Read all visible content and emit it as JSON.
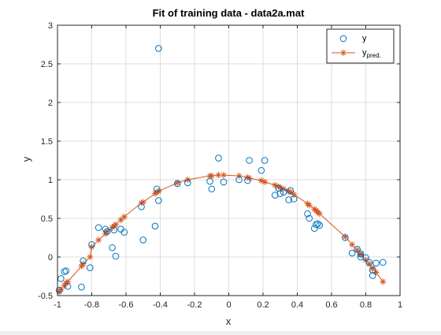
{
  "chart_data": {
    "type": "scatter",
    "title": "Fit of training data - data2a.mat",
    "xlabel": "x",
    "ylabel": "y",
    "xlim": [
      -1,
      1
    ],
    "ylim": [
      -0.5,
      3
    ],
    "xticks": [
      -1,
      -0.8,
      -0.6,
      -0.4,
      -0.2,
      0,
      0.2,
      0.4,
      0.6,
      0.8,
      1
    ],
    "xtick_labels": [
      "-1",
      "-0.8",
      "-0.6",
      "-0.4",
      "-0.2",
      "0",
      "0.2",
      "0.4",
      "0.6",
      "0.8",
      "1"
    ],
    "yticks": [
      -0.5,
      0,
      0.5,
      1,
      1.5,
      2,
      2.5,
      3
    ],
    "ytick_labels": [
      "-0.5",
      "0",
      "0.5",
      "1",
      "1.5",
      "2",
      "2.5",
      "3"
    ],
    "grid": true,
    "legend_position": "top-right",
    "series": [
      {
        "name": "y",
        "style": "circle-markers",
        "color": "#0072BD",
        "x": [
          -0.99,
          -0.98,
          -0.96,
          -0.95,
          -0.94,
          -0.86,
          -0.85,
          -0.81,
          -0.8,
          -0.76,
          -0.72,
          -0.71,
          -0.68,
          -0.67,
          -0.66,
          -0.63,
          -0.61,
          -0.51,
          -0.5,
          -0.43,
          -0.42,
          -0.41,
          -0.41,
          -0.3,
          -0.24,
          -0.11,
          -0.1,
          -0.06,
          -0.03,
          0.06,
          0.11,
          0.12,
          0.19,
          0.21,
          0.27,
          0.29,
          0.3,
          0.32,
          0.35,
          0.36,
          0.38,
          0.46,
          0.47,
          0.5,
          0.51,
          0.52,
          0.53,
          0.68,
          0.72,
          0.75,
          0.77,
          0.77,
          0.8,
          0.82,
          0.84,
          0.84,
          0.86,
          0.9
        ],
        "y": [
          -0.43,
          -0.28,
          -0.19,
          -0.18,
          -0.38,
          -0.39,
          -0.05,
          -0.14,
          0.16,
          0.38,
          0.36,
          0.33,
          0.12,
          0.35,
          0.01,
          0.36,
          0.32,
          0.65,
          0.22,
          0.4,
          0.88,
          0.73,
          2.7,
          0.95,
          0.96,
          0.98,
          0.88,
          1.28,
          0.97,
          1.0,
          0.99,
          1.25,
          1.12,
          1.25,
          0.8,
          0.89,
          0.82,
          0.84,
          0.74,
          0.86,
          0.75,
          0.56,
          0.5,
          0.37,
          0.42,
          0.43,
          0.41,
          0.25,
          0.05,
          0.1,
          0.04,
          0.0,
          -0.01,
          -0.07,
          -0.17,
          -0.24,
          -0.08,
          -0.07
        ]
      },
      {
        "name": "y",
        "subscript": "pred.",
        "style": "line-star-markers",
        "color": "#D95319",
        "x": [
          -0.99,
          -0.98,
          -0.96,
          -0.95,
          -0.94,
          -0.86,
          -0.85,
          -0.81,
          -0.8,
          -0.76,
          -0.72,
          -0.71,
          -0.68,
          -0.67,
          -0.66,
          -0.63,
          -0.61,
          -0.51,
          -0.5,
          -0.43,
          -0.42,
          -0.41,
          -0.41,
          -0.3,
          -0.24,
          -0.11,
          -0.1,
          -0.06,
          -0.03,
          0.06,
          0.11,
          0.12,
          0.19,
          0.21,
          0.27,
          0.29,
          0.3,
          0.32,
          0.35,
          0.36,
          0.38,
          0.46,
          0.47,
          0.5,
          0.51,
          0.52,
          0.53,
          0.68,
          0.72,
          0.75,
          0.77,
          0.77,
          0.8,
          0.82,
          0.84,
          0.84,
          0.86,
          0.9
        ],
        "y": [
          -0.45,
          -0.42,
          -0.37,
          -0.34,
          -0.32,
          -0.12,
          -0.09,
          0.0,
          0.13,
          0.22,
          0.3,
          0.33,
          0.38,
          0.4,
          0.42,
          0.48,
          0.52,
          0.7,
          0.71,
          0.82,
          0.84,
          0.85,
          0.85,
          0.96,
          1.0,
          1.05,
          1.05,
          1.06,
          1.06,
          1.05,
          1.03,
          1.02,
          0.99,
          0.97,
          0.93,
          0.91,
          0.9,
          0.88,
          0.85,
          0.84,
          0.81,
          0.69,
          0.67,
          0.62,
          0.6,
          0.58,
          0.56,
          0.26,
          0.16,
          0.09,
          0.04,
          0.03,
          -0.04,
          -0.09,
          -0.15,
          -0.15,
          -0.2,
          -0.32
        ]
      }
    ]
  }
}
